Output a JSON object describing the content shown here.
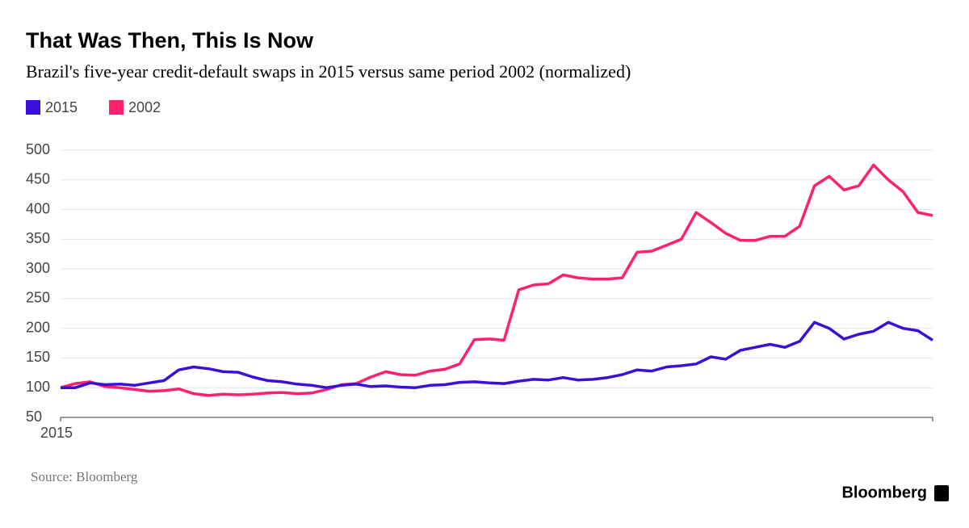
{
  "chart_data": {
    "type": "line",
    "title": "That Was Then, This Is Now",
    "subtitle": "Brazil's five-year credit-default swaps in 2015 versus same period 2002 (normalized)",
    "source": "Source: Bloomberg",
    "brand": "Bloomberg",
    "categories": [
      "2015",
      null,
      null,
      null,
      null,
      null,
      null,
      null,
      null,
      null,
      null,
      null,
      null,
      null,
      null,
      null,
      null,
      null,
      null,
      null,
      null,
      null,
      null,
      null,
      null,
      null,
      null,
      null,
      null,
      null,
      null,
      null,
      null,
      null,
      null,
      null,
      null,
      null,
      null,
      null,
      null,
      null,
      null,
      null,
      null,
      null,
      null,
      null,
      null,
      null,
      null,
      null,
      null,
      null,
      null,
      null,
      null,
      null,
      null,
      null
    ],
    "series": [
      {
        "name": "2015",
        "color": "#3a10d9",
        "values": [
          100,
          100,
          108,
          105,
          106,
          104,
          108,
          112,
          130,
          135,
          132,
          127,
          126,
          118,
          112,
          110,
          106,
          104,
          100,
          104,
          106,
          102,
          103,
          101,
          100,
          104,
          105,
          109,
          110,
          108,
          107,
          111,
          114,
          113,
          117,
          113,
          114,
          117,
          122,
          130,
          128,
          135,
          137,
          140,
          152,
          148,
          163,
          168,
          173,
          168,
          178,
          210,
          200,
          182,
          190,
          195,
          210,
          200,
          196,
          180
        ]
      },
      {
        "name": "2002",
        "color": "#ff2070",
        "values": [
          100,
          107,
          110,
          102,
          100,
          97,
          94,
          95,
          98,
          90,
          87,
          89,
          88,
          89,
          91,
          92,
          90,
          91,
          97,
          105,
          107,
          118,
          127,
          122,
          121,
          128,
          131,
          140,
          181,
          182,
          180,
          265,
          273,
          275,
          290,
          285,
          283,
          283,
          285,
          328,
          330,
          340,
          350,
          395,
          378,
          360,
          348,
          348,
          355,
          355,
          372,
          440,
          456,
          433,
          440,
          475,
          450,
          430,
          395,
          390
        ]
      }
    ],
    "ylim": [
      50,
      500
    ],
    "yticks": [
      50,
      100,
      150,
      200,
      250,
      300,
      350,
      400,
      450,
      500
    ],
    "grid": true
  }
}
